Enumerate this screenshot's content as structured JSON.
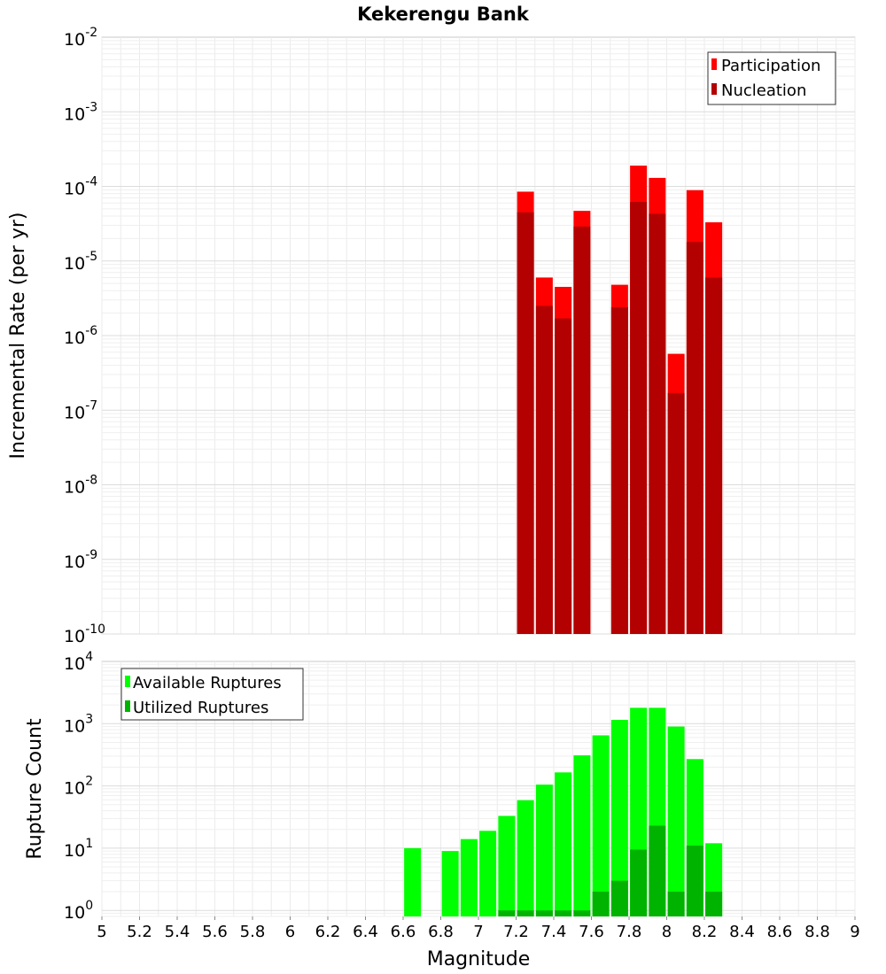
{
  "chart_data": [
    {
      "type": "bar",
      "title": "Kekerengu Bank",
      "xlabel": "Magnitude",
      "ylabel": "Incremental Rate (per yr)",
      "yscale": "log",
      "ylim": [
        1e-10,
        0.01
      ],
      "xlim": [
        5,
        9
      ],
      "ytick_exponents": [
        "-2",
        "-3",
        "-4",
        "-5",
        "-6",
        "-7",
        "-8",
        "-9",
        "-10"
      ],
      "grid": true,
      "legend_position": "top-right",
      "x": [
        7.25,
        7.35,
        7.45,
        7.55,
        7.75,
        7.85,
        7.95,
        8.05,
        8.15,
        8.25
      ],
      "series": [
        {
          "name": "Participation",
          "color": "#ff0000",
          "values": [
            8.5e-05,
            6e-06,
            4.5e-06,
            4.7e-05,
            4.8e-06,
            0.00019,
            0.00013,
            5.7e-07,
            8.9e-05,
            3.3e-05
          ]
        },
        {
          "name": "Nucleation",
          "color": "#b30000",
          "values": [
            4.5e-05,
            2.5e-06,
            1.7e-06,
            2.9e-05,
            2.4e-06,
            6.2e-05,
            4.3e-05,
            1.7e-07,
            1.8e-05,
            6e-06
          ]
        }
      ]
    },
    {
      "type": "bar",
      "title": "",
      "xlabel": "Magnitude",
      "ylabel": "Rupture Count",
      "yscale": "log",
      "ylim": [
        0.8,
        10000
      ],
      "xlim": [
        5,
        9
      ],
      "ytick_exponents": [
        "4",
        "3",
        "2",
        "1",
        "0"
      ],
      "grid": true,
      "legend_position": "top-left",
      "x_ticks": [
        "5",
        "5.2",
        "5.4",
        "5.6",
        "5.8",
        "6",
        "6.2",
        "6.4",
        "6.6",
        "6.8",
        "7",
        "7.2",
        "7.4",
        "7.6",
        "7.8",
        "8",
        "8.2",
        "8.4",
        "8.6",
        "8.8",
        "9"
      ],
      "series": [
        {
          "name": "Available Ruptures",
          "color": "#00ff00",
          "x": [
            6.65,
            6.85,
            6.95,
            7.05,
            7.15,
            7.25,
            7.35,
            7.45,
            7.55,
            7.65,
            7.75,
            7.85,
            7.95,
            8.05,
            8.15,
            8.25
          ],
          "values": [
            10,
            9,
            14,
            19,
            33,
            59,
            105,
            165,
            310,
            650,
            1150,
            1800,
            1800,
            900,
            270,
            12
          ]
        },
        {
          "name": "Utilized Ruptures",
          "color": "#00b300",
          "x": [
            7.15,
            7.25,
            7.35,
            7.45,
            7.55,
            7.65,
            7.75,
            7.85,
            7.95,
            8.05,
            8.15,
            8.25
          ],
          "values": [
            1,
            1,
            1,
            1,
            1,
            2,
            3,
            9.5,
            23,
            2,
            11,
            2
          ]
        }
      ]
    }
  ]
}
